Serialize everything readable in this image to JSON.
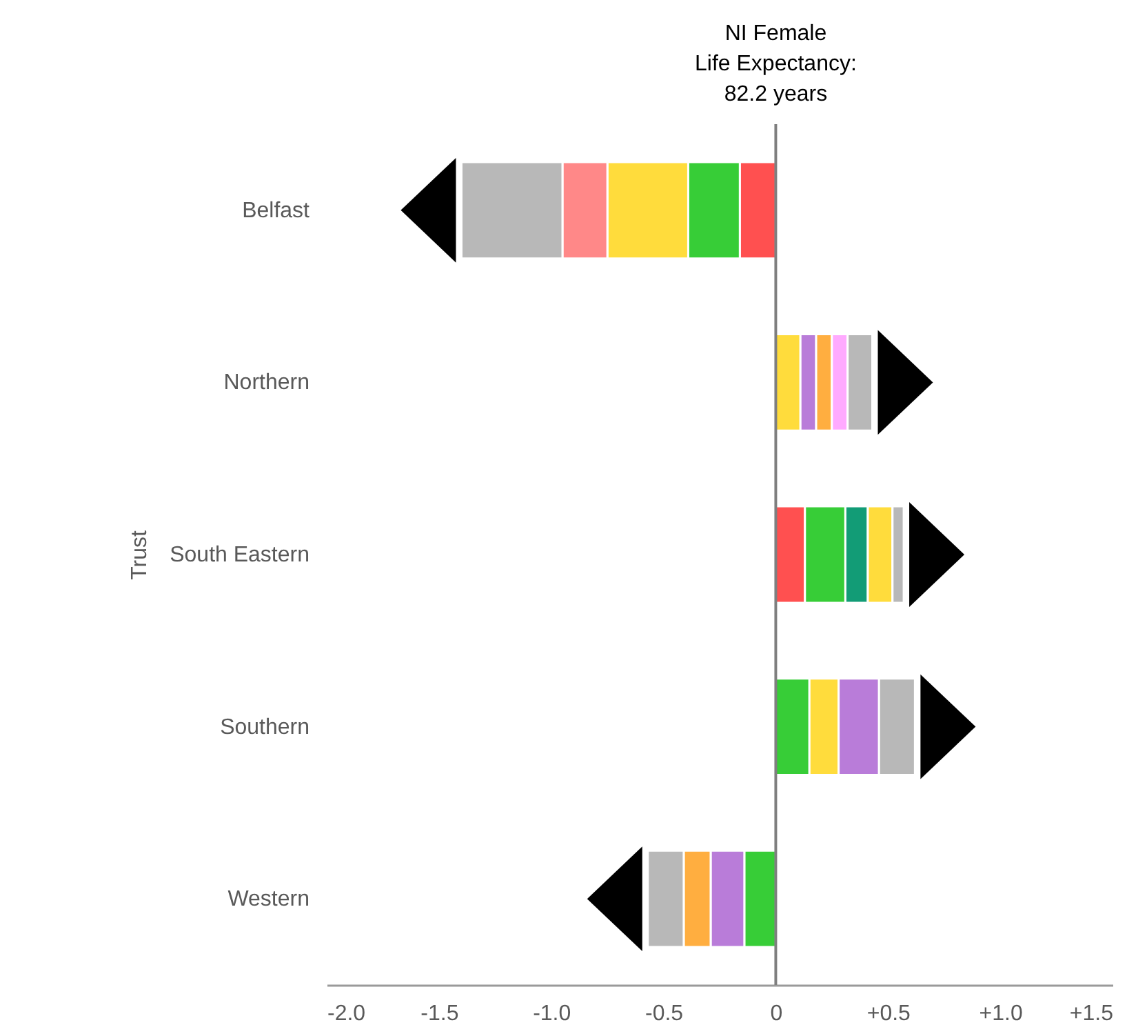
{
  "chart_data": {
    "type": "bar",
    "orientation": "horizontal",
    "stacked": true,
    "ylabel": "Trust",
    "categories": [
      "Belfast",
      "Northern",
      "South Eastern",
      "Southern",
      "Western"
    ],
    "series": [
      {
        "color": "#ff5050",
        "values": [
          -0.16,
          null,
          0.13,
          null,
          null
        ]
      },
      {
        "color": "#37cd37",
        "values": [
          -0.23,
          null,
          0.18,
          0.15,
          -0.14
        ]
      },
      {
        "color": "#129c76",
        "values": [
          null,
          null,
          0.1,
          null,
          null
        ]
      },
      {
        "color": "#ffdc3c",
        "values": [
          -0.36,
          0.11,
          0.11,
          0.13,
          null
        ]
      },
      {
        "color": "#b97cd9",
        "values": [
          null,
          0.07,
          null,
          0.18,
          -0.15
        ]
      },
      {
        "color": "#ffae40",
        "values": [
          null,
          0.07,
          null,
          null,
          -0.12
        ]
      },
      {
        "color": "#ffaaff",
        "values": [
          null,
          0.07,
          null,
          null,
          null
        ]
      },
      {
        "color": "#ff8888",
        "values": [
          -0.2,
          null,
          null,
          null,
          null
        ]
      },
      {
        "color": "#b8b8b8",
        "values": [
          -0.45,
          0.11,
          0.05,
          0.16,
          -0.16
        ]
      }
    ],
    "xlim": [
      -2,
      1.5
    ],
    "xticks": [
      {
        "value": -2,
        "label": "-2.0"
      },
      -1.5,
      {
        "value": -1,
        "label": "-1.0"
      },
      -0.5,
      0,
      {
        "value": 0.5,
        "label": "+0.5"
      },
      {
        "value": 1,
        "label": "+1.0"
      },
      {
        "value": 1.5,
        "label": "+1.5"
      }
    ],
    "ref_lines": [
      {
        "axis": "x",
        "value": 0,
        "color": "#7f7f7f"
      }
    ],
    "annotations": [
      "NI Female\nLife Expectancy:\n82.2 years"
    ],
    "grid": false
  }
}
